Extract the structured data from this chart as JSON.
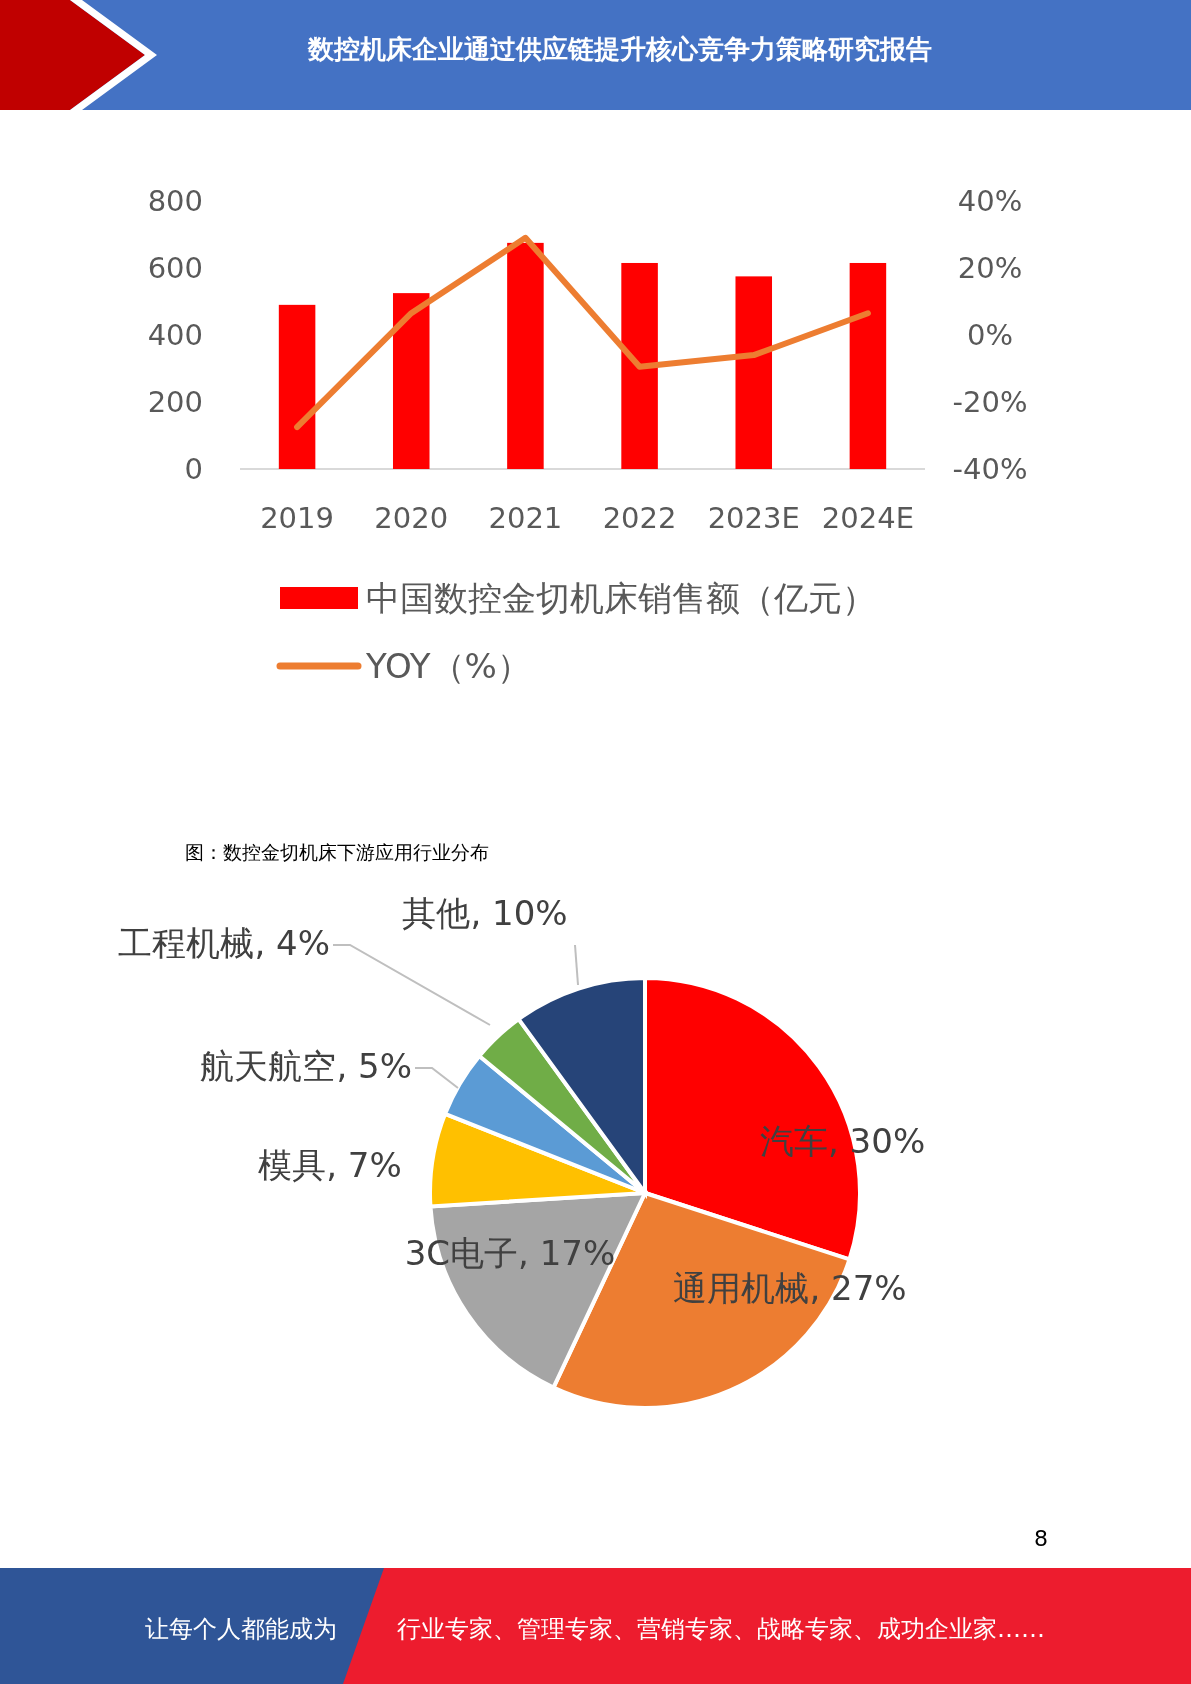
{
  "chart_data": [
    {
      "type": "bar",
      "title": "数控机床企业通过供应链提升核心竞争力策略研究报告",
      "categories": [
        "2019",
        "2020",
        "2021",
        "2022",
        "2023E",
        "2024E"
      ],
      "series": [
        {
          "name": "中国数控金切机床销售额（亿元）",
          "type": "bar",
          "color": "#ff0000",
          "values": [
            490,
            525,
            675,
            615,
            575,
            615
          ]
        },
        {
          "name": "YOY（%）",
          "type": "line",
          "axis": "y2",
          "color": "#ed7d31",
          "values": [
            -27.5,
            6.5,
            29,
            -9.5,
            -6,
            6.5
          ]
        }
      ],
      "ylim": [
        0,
        800
      ],
      "yticks": [
        0,
        200,
        400,
        600,
        800
      ],
      "y2lim": [
        -40,
        40
      ],
      "y2ticks": [
        {
          "value": -40,
          "label": "-40%"
        },
        {
          "value": -20,
          "label": "-20%"
        },
        {
          "value": 0,
          "label": "0%"
        },
        {
          "value": 20,
          "label": "20%"
        },
        {
          "value": 40,
          "label": "40%"
        }
      ],
      "legend": "bottom",
      "grid": false,
      "marker": "none",
      "line_style": "solid"
    },
    {
      "type": "pie",
      "title": "图：数控金切机床下游应用行业分布",
      "categories": [
        "汽车",
        "通用机械",
        "3C电子",
        "模具",
        "航天航空",
        "工程机械",
        "其他"
      ],
      "data_labels": true,
      "value_labels": [
        "30%",
        "27%",
        "17%",
        "7%",
        "5%",
        "4%",
        "10%"
      ],
      "values": [
        30,
        27,
        17,
        7,
        5,
        4,
        10
      ],
      "colors": [
        "#ff0000",
        "#ed7d31",
        "#a5a5a5",
        "#ffc000",
        "#5b9bd5",
        "#70ad47",
        "#264478"
      ],
      "annotations": [
        "8",
        "让每个人都能成为",
        "行业专家、管理专家、营销专家、战略专家、成功企业家……"
      ]
    }
  ]
}
